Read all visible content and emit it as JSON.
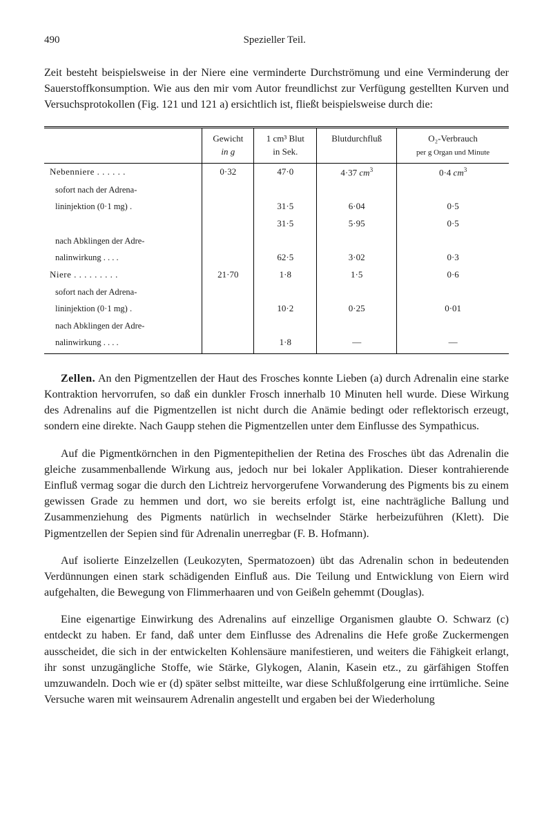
{
  "header": {
    "page_number": "490",
    "section": "Spezieller Teil."
  },
  "intro_para": "Zeit besteht beispielsweise in der Niere eine verminderte Durchströmung und eine Verminderung der Sauerstoffkonsumption. Wie aus den mir vom Autor freundlichst zur Verfügung gestellten Kurven und Versuchsprotokollen (Fig. 121 und 121 a) ersichtlich ist, fließt beispielsweise durch die:",
  "table": {
    "columns": {
      "c1": "",
      "c2_l1": "Gewicht",
      "c2_l2": "in g",
      "c3_l1": "1 cm³ Blut",
      "c3_l2": "in Sek.",
      "c4": "Blutdurchfluß",
      "c5_l1": "O₂-Verbrauch",
      "c5_l2": "per g Organ und Minute"
    },
    "rows": [
      {
        "label": "Nebenniere . . . . . .",
        "gewicht": "0·32",
        "blut": "47·0",
        "durchfluss": "4·37 cm³",
        "verbrauch": "0·4 cm³",
        "cls": ""
      },
      {
        "label": "sofort nach der Adrena-",
        "gewicht": "",
        "blut": "",
        "durchfluss": "",
        "verbrauch": "",
        "cls": "sub-row"
      },
      {
        "label": "lininjektion (0·1 mg) .",
        "gewicht": "",
        "blut": "31·5",
        "durchfluss": "6·04",
        "verbrauch": "0·5",
        "cls": "sub-row"
      },
      {
        "label": "",
        "gewicht": "",
        "blut": "31·5",
        "durchfluss": "5·95",
        "verbrauch": "0·5",
        "cls": "sub-row"
      },
      {
        "label": "nach Abklingen der Adre-",
        "gewicht": "",
        "blut": "",
        "durchfluss": "",
        "verbrauch": "",
        "cls": "sub-row"
      },
      {
        "label": "nalinwirkung . . . .",
        "gewicht": "",
        "blut": "62·5",
        "durchfluss": "3·02",
        "verbrauch": "0·3",
        "cls": "sub-row"
      },
      {
        "label": "Niere . . . . . . . . .",
        "gewicht": "21·70",
        "blut": "1·8",
        "durchfluss": "1·5",
        "verbrauch": "0·6",
        "cls": ""
      },
      {
        "label": "sofort nach der Adrena-",
        "gewicht": "",
        "blut": "",
        "durchfluss": "",
        "verbrauch": "",
        "cls": "sub-row"
      },
      {
        "label": "lininjektion (0·1 mg) .",
        "gewicht": "",
        "blut": "10·2",
        "durchfluss": "0·25",
        "verbrauch": "0·01",
        "cls": "sub-row"
      },
      {
        "label": "nach Abklingen der Adre-",
        "gewicht": "",
        "blut": "",
        "durchfluss": "",
        "verbrauch": "",
        "cls": "sub-row"
      },
      {
        "label": "nalinwirkung . . . .",
        "gewicht": "",
        "blut": "1·8",
        "durchfluss": "—",
        "verbrauch": "—",
        "cls": "sub-row"
      }
    ]
  },
  "para_zellen_head": "Zellen.",
  "para_zellen_rest": " An den Pigmentzellen der Haut des Frosches konnte Lieben (a) durch Adrenalin eine starke Kontraktion hervorrufen, so daß ein dunkler Frosch innerhalb 10 Minuten hell wurde. Diese Wirkung des Adrenalins auf die Pigmentzellen ist nicht durch die Anämie bedingt oder reflektorisch erzeugt, sondern eine direkte. Nach Gaupp stehen die Pigmentzellen unter dem Einflusse des Sympathicus.",
  "para2": "Auf die Pigmentkörnchen in den Pigmentepithelien der Retina des Frosches übt das Adrenalin die gleiche zusammenballende Wirkung aus, jedoch nur bei lokaler Applikation. Dieser kontrahierende Einfluß vermag sogar die durch den Lichtreiz hervorgerufene Vorwanderung des Pigments bis zu einem gewissen Grade zu hemmen und dort, wo sie bereits erfolgt ist, eine nachträgliche Ballung und Zusammenziehung des Pigments natürlich in wechselnder Stärke herbeizuführen (Klett). Die Pigmentzellen der Sepien sind für Adrenalin unerregbar (F. B. Hofmann).",
  "para3": "Auf isolierte Einzelzellen (Leukozyten, Spermatozoen) übt das Adrenalin schon in bedeutenden Verdünnungen einen stark schädigenden Einfluß aus. Die Teilung und Entwicklung von Eiern wird aufgehalten, die Bewegung von Flimmerhaaren und von Geißeln gehemmt (Douglas).",
  "para4": "Eine eigenartige Einwirkung des Adrenalins auf einzellige Organismen glaubte O. Schwarz (c) entdeckt zu haben. Er fand, daß unter dem Einflusse des Adrenalins die Hefe große Zuckermengen ausscheidet, die sich in der entwickelten Kohlensäure manifestieren, und weiters die Fähigkeit erlangt, ihr sonst unzugängliche Stoffe, wie Stärke, Glykogen, Alanin, Kasein etz., zu gärfähigen Stoffen umzuwandeln. Doch wie er (d) später selbst mitteilte, war diese Schlußfolgerung eine irrtümliche. Seine Versuche waren mit weinsaurem Adrenalin angestellt und ergaben bei der Wiederholung"
}
